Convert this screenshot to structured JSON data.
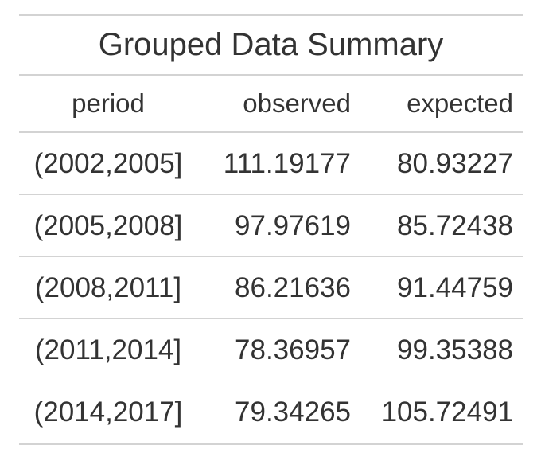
{
  "table": {
    "title": "Grouped Data Summary",
    "columns": [
      "period",
      "observed",
      "expected"
    ],
    "rows": [
      [
        "(2002,2005]",
        "111.19177",
        "80.93227"
      ],
      [
        "(2005,2008]",
        "97.97619",
        "85.72438"
      ],
      [
        "(2008,2011]",
        "86.21636",
        "91.44759"
      ],
      [
        "(2011,2014]",
        "78.36957",
        "99.35388"
      ],
      [
        "(2014,2017]",
        "79.34265",
        "105.72491"
      ]
    ]
  },
  "colors": {
    "text": "#333333",
    "rule": "#d3d3d3",
    "background": "#ffffff"
  }
}
